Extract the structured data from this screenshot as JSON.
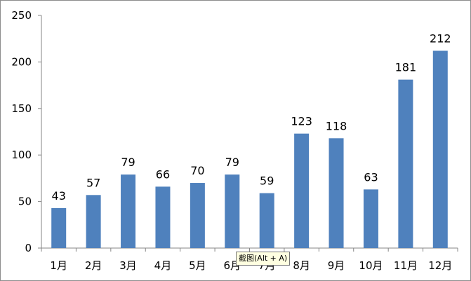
{
  "chart_data": {
    "type": "bar",
    "categories": [
      "1月",
      "2月",
      "3月",
      "4月",
      "5月",
      "6月",
      "7月",
      "8月",
      "9月",
      "10月",
      "11月",
      "12月"
    ],
    "values": [
      43,
      57,
      79,
      66,
      70,
      79,
      59,
      123,
      118,
      63,
      181,
      212
    ],
    "yticks": [
      "0",
      "50",
      "100",
      "150",
      "200",
      "250"
    ],
    "ylim": [
      0,
      250
    ],
    "bar_color": "#4f81bd",
    "data_labels": true,
    "grid": false,
    "legend": "none",
    "title": "",
    "xlabel": "",
    "ylabel": ""
  },
  "tooltip": {
    "text": "截图(Alt + A)"
  }
}
